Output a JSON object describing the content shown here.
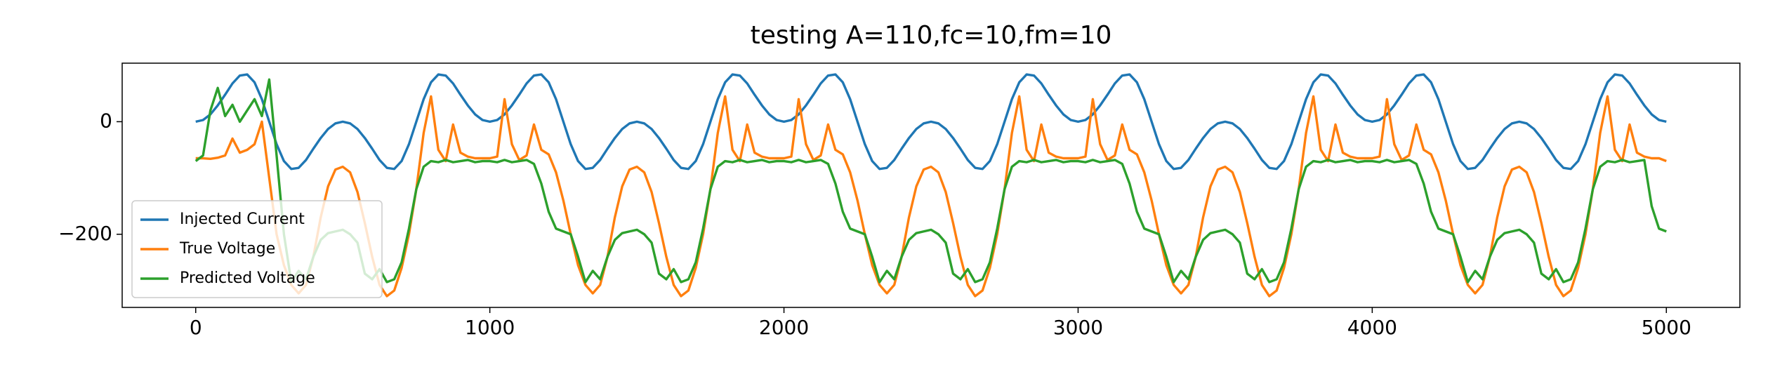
{
  "chart_data": {
    "type": "line",
    "title": "testing A=110,fc=10,fm=10",
    "x": [
      0,
      25,
      50,
      75,
      100,
      125,
      150,
      175,
      200,
      225,
      250,
      275,
      300,
      325,
      350,
      375,
      400,
      425,
      450,
      475,
      500,
      525,
      550,
      575,
      600,
      625,
      650,
      675,
      700,
      725,
      750,
      775,
      800,
      825,
      850,
      875,
      900,
      925,
      950,
      975,
      1000,
      1025,
      1050,
      1075,
      1100,
      1125,
      1150,
      1175,
      1200,
      1225,
      1250,
      1275,
      1300,
      1325,
      1350,
      1375,
      1400,
      1425,
      1450,
      1475,
      1500,
      1525,
      1550,
      1575,
      1600,
      1625,
      1650,
      1675,
      1700,
      1725,
      1750,
      1775,
      1800,
      1825,
      1850,
      1875,
      1900,
      1925,
      1950,
      1975,
      2000,
      2025,
      2050,
      2075,
      2100,
      2125,
      2150,
      2175,
      2200,
      2225,
      2250,
      2275,
      2300,
      2325,
      2350,
      2375,
      2400,
      2425,
      2450,
      2475,
      2500,
      2525,
      2550,
      2575,
      2600,
      2625,
      2650,
      2675,
      2700,
      2725,
      2750,
      2775,
      2800,
      2825,
      2850,
      2875,
      2900,
      2925,
      2950,
      2975,
      3000,
      3025,
      3050,
      3075,
      3100,
      3125,
      3150,
      3175,
      3200,
      3225,
      3250,
      3275,
      3300,
      3325,
      3350,
      3375,
      3400,
      3425,
      3450,
      3475,
      3500,
      3525,
      3550,
      3575,
      3600,
      3625,
      3650,
      3675,
      3700,
      3725,
      3750,
      3775,
      3800,
      3825,
      3850,
      3875,
      3900,
      3925,
      3950,
      3975,
      4000,
      4025,
      4050,
      4075,
      4100,
      4125,
      4150,
      4175,
      4200,
      4225,
      4250,
      4275,
      4300,
      4325,
      4350,
      4375,
      4400,
      4425,
      4450,
      4475,
      4500,
      4525,
      4550,
      4575,
      4600,
      4625,
      4650,
      4675,
      4700,
      4725,
      4750,
      4775,
      4800,
      4825,
      4850,
      4875,
      4900,
      4925,
      4950,
      4975,
      5000
    ],
    "series": [
      {
        "name": "Injected Current",
        "color": "#1f77b4",
        "values": [
          0,
          3,
          13,
          29,
          48,
          68,
          82,
          84,
          70,
          40,
          0,
          -40,
          -70,
          -84,
          -82,
          -68,
          -48,
          -29,
          -13,
          -3,
          0,
          -3,
          -13,
          -29,
          -48,
          -68,
          -82,
          -84,
          -70,
          -40,
          0,
          40,
          70,
          84,
          82,
          68,
          48,
          29,
          13,
          3,
          0,
          3,
          13,
          29,
          48,
          68,
          82,
          84,
          70,
          40,
          0,
          -40,
          -70,
          -84,
          -82,
          -68,
          -48,
          -29,
          -13,
          -3,
          0,
          -3,
          -13,
          -29,
          -48,
          -68,
          -82,
          -84,
          -70,
          -40,
          0,
          40,
          70,
          84,
          82,
          68,
          48,
          29,
          13,
          3,
          0,
          3,
          13,
          29,
          48,
          68,
          82,
          84,
          70,
          40,
          0,
          -40,
          -70,
          -84,
          -82,
          -68,
          -48,
          -29,
          -13,
          -3,
          0,
          -3,
          -13,
          -29,
          -48,
          -68,
          -82,
          -84,
          -70,
          -40,
          0,
          40,
          70,
          84,
          82,
          68,
          48,
          29,
          13,
          3,
          0,
          3,
          13,
          29,
          48,
          68,
          82,
          84,
          70,
          40,
          0,
          -40,
          -70,
          -84,
          -82,
          -68,
          -48,
          -29,
          -13,
          -3,
          0,
          -3,
          -13,
          -29,
          -48,
          -68,
          -82,
          -84,
          -70,
          -40,
          0,
          40,
          70,
          84,
          82,
          68,
          48,
          29,
          13,
          3,
          0,
          3,
          13,
          29,
          48,
          68,
          82,
          84,
          70,
          40,
          0,
          -40,
          -70,
          -84,
          -82,
          -68,
          -48,
          -29,
          -13,
          -3,
          0,
          -3,
          -13,
          -29,
          -48,
          -68,
          -82,
          -84,
          -70,
          -40,
          0,
          40,
          70,
          84,
          82,
          68,
          48,
          29,
          13,
          3,
          0
        ]
      },
      {
        "name": "True Voltage",
        "color": "#ff7f0e",
        "values": [
          -65,
          -65,
          -66,
          -64,
          -60,
          -30,
          -55,
          -50,
          -40,
          0,
          -100,
          -200,
          -255,
          -290,
          -305,
          -290,
          -240,
          -170,
          -115,
          -85,
          -80,
          -90,
          -125,
          -180,
          -240,
          -290,
          -310,
          -300,
          -260,
          -200,
          -120,
          -20,
          45,
          -50,
          -70,
          -5,
          -55,
          -62,
          -65,
          -65,
          -65,
          -62,
          40,
          -40,
          -68,
          -60,
          -5,
          -50,
          -58,
          -90,
          -140,
          -200,
          -255,
          -290,
          -305,
          -290,
          -240,
          -170,
          -115,
          -85,
          -80,
          -90,
          -125,
          -180,
          -240,
          -290,
          -310,
          -300,
          -260,
          -200,
          -120,
          -20,
          45,
          -50,
          -70,
          -5,
          -55,
          -62,
          -65,
          -65,
          -65,
          -62,
          40,
          -40,
          -68,
          -60,
          -5,
          -50,
          -58,
          -90,
          -140,
          -200,
          -255,
          -290,
          -305,
          -290,
          -240,
          -170,
          -115,
          -85,
          -80,
          -90,
          -125,
          -180,
          -240,
          -290,
          -310,
          -300,
          -260,
          -200,
          -120,
          -20,
          45,
          -50,
          -70,
          -5,
          -55,
          -62,
          -65,
          -65,
          -65,
          -62,
          40,
          -40,
          -68,
          -60,
          -5,
          -50,
          -58,
          -90,
          -140,
          -200,
          -255,
          -290,
          -305,
          -290,
          -240,
          -170,
          -115,
          -85,
          -80,
          -90,
          -125,
          -180,
          -240,
          -290,
          -310,
          -300,
          -260,
          -200,
          -120,
          -20,
          45,
          -50,
          -70,
          -5,
          -55,
          -62,
          -65,
          -65,
          -65,
          -62,
          40,
          -40,
          -68,
          -60,
          -5,
          -50,
          -58,
          -90,
          -140,
          -200,
          -255,
          -290,
          -305,
          -290,
          -240,
          -170,
          -115,
          -85,
          -80,
          -90,
          -125,
          -180,
          -240,
          -290,
          -310,
          -300,
          -260,
          -200,
          -120,
          -20,
          45,
          -50,
          -70,
          -5,
          -55,
          -62,
          -65,
          -65,
          -70
        ]
      },
      {
        "name": "Predicted Voltage",
        "color": "#2ca02c",
        "values": [
          -70,
          -60,
          20,
          60,
          10,
          30,
          0,
          20,
          40,
          10,
          75,
          -60,
          -200,
          -285,
          -265,
          -280,
          -240,
          -210,
          -198,
          -195,
          -192,
          -200,
          -215,
          -270,
          -280,
          -262,
          -285,
          -280,
          -250,
          -190,
          -120,
          -80,
          -70,
          -72,
          -68,
          -72,
          -70,
          -68,
          -72,
          -70,
          -70,
          -72,
          -68,
          -72,
          -70,
          -68,
          -75,
          -110,
          -160,
          -190,
          -195,
          -200,
          -240,
          -285,
          -265,
          -280,
          -240,
          -210,
          -198,
          -195,
          -192,
          -200,
          -215,
          -270,
          -280,
          -262,
          -285,
          -280,
          -250,
          -190,
          -120,
          -80,
          -70,
          -72,
          -68,
          -72,
          -70,
          -68,
          -72,
          -70,
          -70,
          -72,
          -68,
          -72,
          -70,
          -68,
          -75,
          -110,
          -160,
          -190,
          -195,
          -200,
          -240,
          -285,
          -265,
          -280,
          -240,
          -210,
          -198,
          -195,
          -192,
          -200,
          -215,
          -270,
          -280,
          -262,
          -285,
          -280,
          -250,
          -190,
          -120,
          -80,
          -70,
          -72,
          -68,
          -72,
          -70,
          -68,
          -72,
          -70,
          -70,
          -72,
          -68,
          -72,
          -70,
          -68,
          -75,
          -110,
          -160,
          -190,
          -195,
          -200,
          -240,
          -285,
          -265,
          -280,
          -240,
          -210,
          -198,
          -195,
          -192,
          -200,
          -215,
          -270,
          -280,
          -262,
          -285,
          -280,
          -250,
          -190,
          -120,
          -80,
          -70,
          -72,
          -68,
          -72,
          -70,
          -68,
          -72,
          -70,
          -70,
          -72,
          -68,
          -72,
          -70,
          -68,
          -75,
          -110,
          -160,
          -190,
          -195,
          -200,
          -240,
          -285,
          -265,
          -280,
          -240,
          -210,
          -198,
          -195,
          -192,
          -200,
          -215,
          -270,
          -280,
          -262,
          -285,
          -280,
          -250,
          -190,
          -120,
          -80,
          -70,
          -72,
          -68,
          -72,
          -70,
          -68,
          -150,
          -190,
          -195
        ]
      }
    ],
    "xlim": [
      -250,
      5250
    ],
    "xticks": [
      0,
      1000,
      2000,
      3000,
      4000,
      5000
    ],
    "ylim": [
      -330,
      104
    ],
    "yticks": [
      {
        "value": -200,
        "label": "−200"
      },
      0
    ],
    "legend": "lower left"
  }
}
